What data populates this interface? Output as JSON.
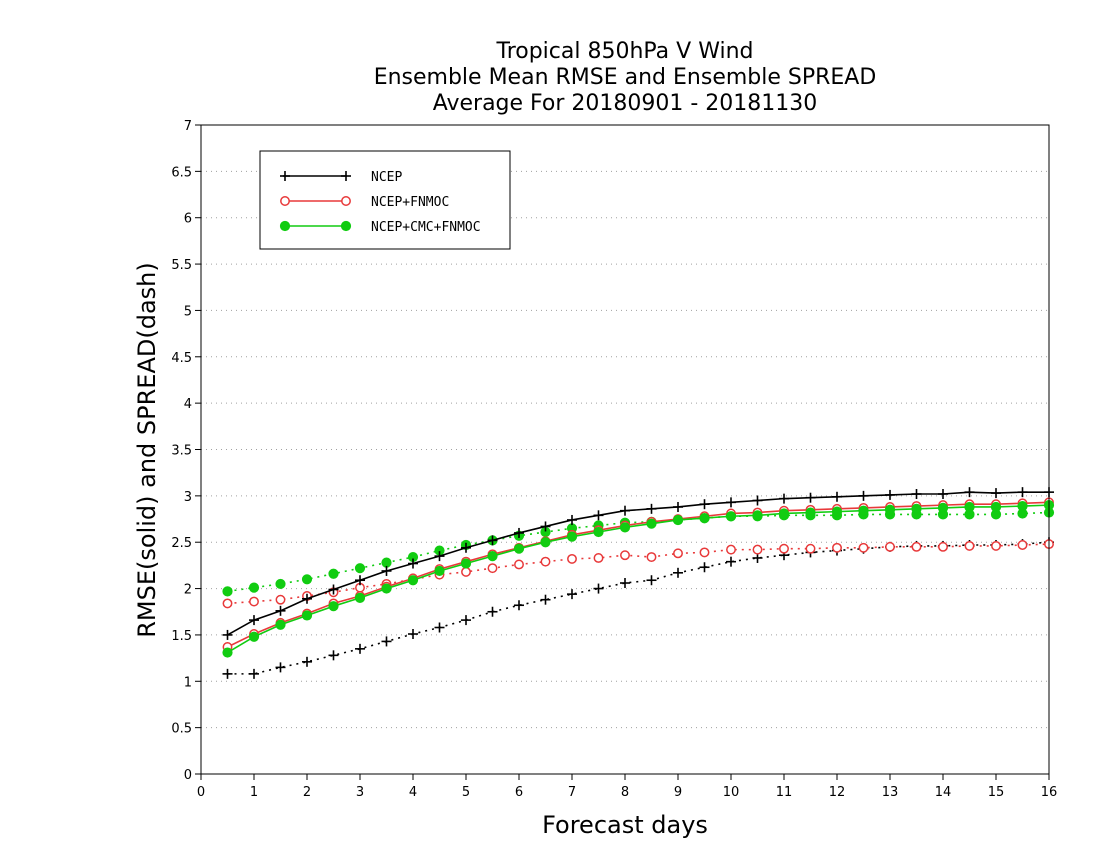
{
  "chart_data": {
    "type": "line",
    "title_lines": [
      "Tropical 850hPa V Wind",
      "Ensemble Mean RMSE and Ensemble SPREAD",
      "Average For 20180901 - 20181130"
    ],
    "xlabel": "Forecast days",
    "ylabel": "RMSE(solid) and SPREAD(dash)",
    "xlim": [
      0,
      16
    ],
    "ylim": [
      0,
      7
    ],
    "xticks": [
      "0",
      "1",
      "2",
      "3",
      "4",
      "5",
      "6",
      "7",
      "8",
      "9",
      "10",
      "11",
      "12",
      "13",
      "14",
      "15",
      "16"
    ],
    "yticks": [
      "0",
      "0.5",
      "1",
      "1.5",
      "2",
      "2.5",
      "3",
      "3.5",
      "4",
      "4.5",
      "5",
      "5.5",
      "6",
      "6.5",
      "7"
    ],
    "grid": "horizontal dotted",
    "legend_position": "top-left",
    "x": [
      0.5,
      1,
      1.5,
      2,
      2.5,
      3,
      3.5,
      4,
      4.5,
      5,
      5.5,
      6,
      6.5,
      7,
      7.5,
      8,
      8.5,
      9,
      9.5,
      10,
      10.5,
      11,
      11.5,
      12,
      12.5,
      13,
      13.5,
      14,
      14.5,
      15,
      15.5,
      16
    ],
    "series": [
      {
        "name": "NCEP",
        "color": "#000000",
        "marker": "plus",
        "rmse": [
          1.5,
          1.66,
          1.76,
          1.89,
          1.99,
          2.09,
          2.19,
          2.27,
          2.35,
          2.44,
          2.52,
          2.6,
          2.67,
          2.74,
          2.79,
          2.84,
          2.86,
          2.88,
          2.91,
          2.93,
          2.95,
          2.97,
          2.98,
          2.99,
          3.0,
          3.01,
          3.02,
          3.02,
          3.04,
          3.03,
          3.04,
          3.04
        ],
        "spread": [
          1.08,
          1.08,
          1.15,
          1.21,
          1.28,
          1.35,
          1.43,
          1.51,
          1.58,
          1.66,
          1.75,
          1.82,
          1.88,
          1.94,
          2.0,
          2.06,
          2.09,
          2.17,
          2.23,
          2.29,
          2.33,
          2.36,
          2.39,
          2.41,
          2.43,
          2.45,
          2.46,
          2.46,
          2.47,
          2.47,
          2.48,
          2.5
        ]
      },
      {
        "name": "NCEP+FNMOC",
        "color": "#e8393a",
        "marker": "open-circle",
        "rmse": [
          1.37,
          1.51,
          1.63,
          1.73,
          1.84,
          1.92,
          2.02,
          2.11,
          2.21,
          2.29,
          2.37,
          2.44,
          2.51,
          2.58,
          2.63,
          2.68,
          2.72,
          2.75,
          2.78,
          2.81,
          2.82,
          2.84,
          2.85,
          2.86,
          2.87,
          2.88,
          2.89,
          2.9,
          2.91,
          2.91,
          2.92,
          2.93
        ],
        "spread": [
          1.84,
          1.86,
          1.88,
          1.92,
          1.96,
          2.01,
          2.05,
          2.1,
          2.15,
          2.18,
          2.22,
          2.26,
          2.29,
          2.32,
          2.33,
          2.36,
          2.34,
          2.38,
          2.39,
          2.42,
          2.42,
          2.43,
          2.43,
          2.44,
          2.44,
          2.45,
          2.45,
          2.45,
          2.46,
          2.46,
          2.47,
          2.48
        ]
      },
      {
        "name": "NCEP+CMC+FNMOC",
        "color": "#11cc11",
        "marker": "filled-circle",
        "rmse": [
          1.31,
          1.48,
          1.61,
          1.71,
          1.81,
          1.9,
          2.0,
          2.09,
          2.19,
          2.27,
          2.35,
          2.43,
          2.5,
          2.56,
          2.61,
          2.66,
          2.7,
          2.74,
          2.76,
          2.78,
          2.79,
          2.81,
          2.82,
          2.83,
          2.84,
          2.85,
          2.86,
          2.87,
          2.88,
          2.88,
          2.89,
          2.9
        ],
        "spread": [
          1.97,
          2.01,
          2.05,
          2.1,
          2.16,
          2.22,
          2.28,
          2.34,
          2.41,
          2.47,
          2.52,
          2.57,
          2.61,
          2.65,
          2.68,
          2.71,
          2.72,
          2.74,
          2.76,
          2.78,
          2.78,
          2.79,
          2.79,
          2.79,
          2.8,
          2.8,
          2.8,
          2.8,
          2.8,
          2.8,
          2.81,
          2.82
        ]
      }
    ]
  }
}
